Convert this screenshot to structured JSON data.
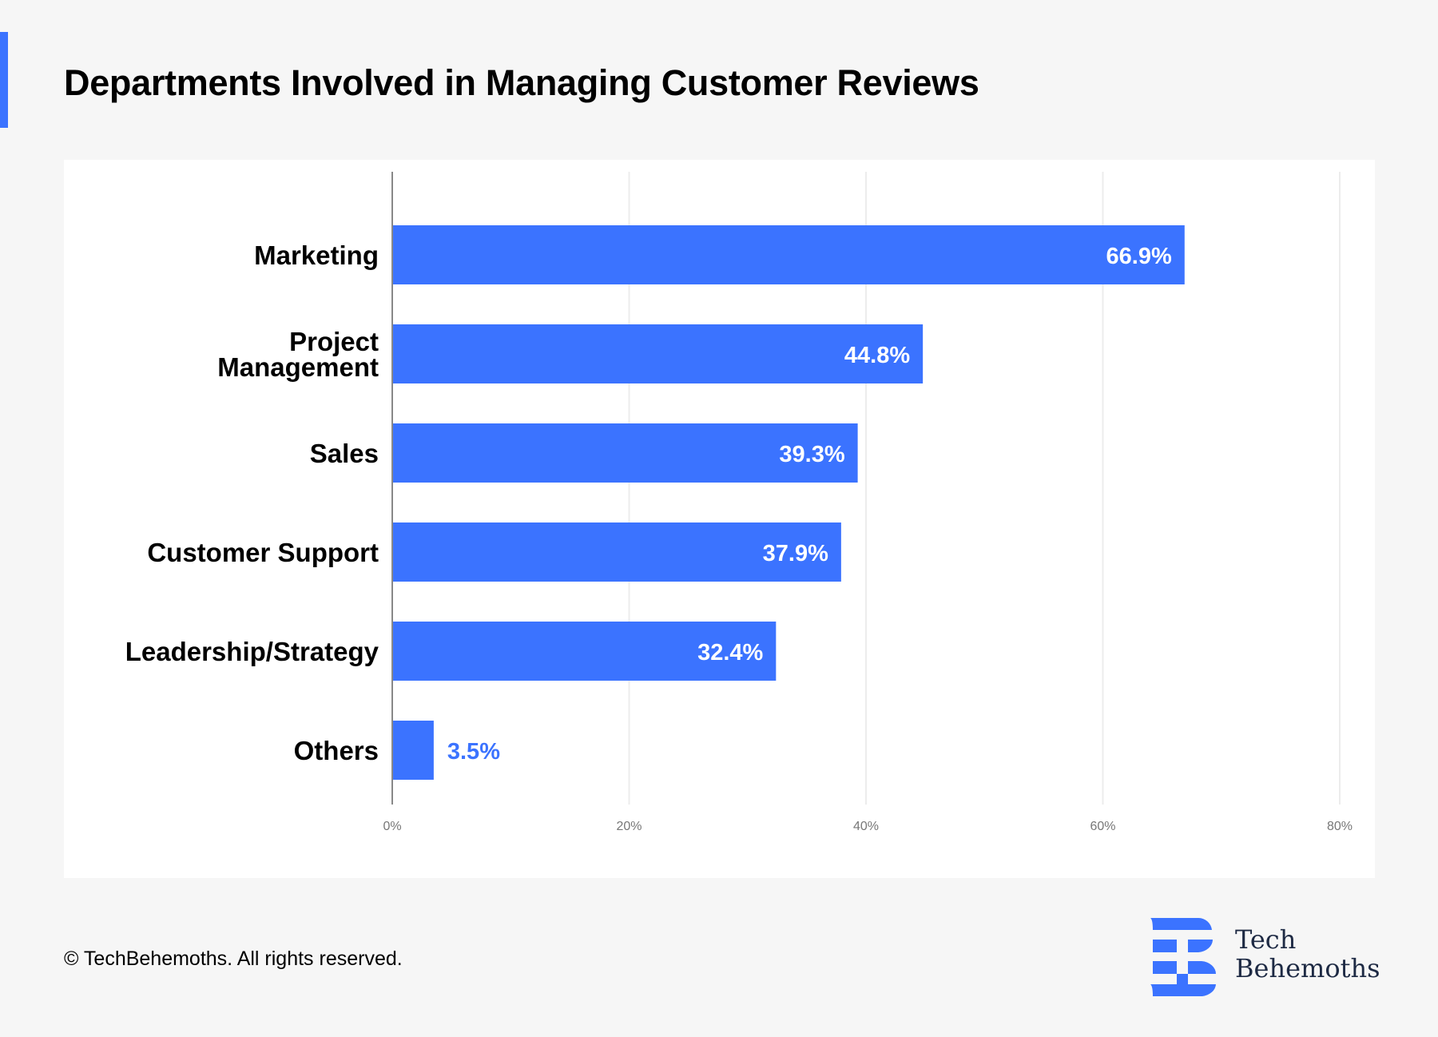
{
  "header": {
    "title": "Departments Involved in Managing Customer Reviews"
  },
  "footer": {
    "copyright": "© TechBehemoths. All rights reserved."
  },
  "brand": {
    "line1": "Tech",
    "line2": "Behemoths",
    "name": "TechBehemoths",
    "color": "#3b73ff",
    "text_color": "#1e2a44"
  },
  "chart_data": {
    "type": "bar",
    "orientation": "horizontal",
    "title": "Departments Involved in Managing Customer Reviews",
    "xlabel": "",
    "ylabel": "",
    "categories": [
      [
        "Marketing"
      ],
      [
        "Project",
        "Management"
      ],
      [
        "Sales"
      ],
      [
        "Customer Support"
      ],
      [
        "Leadership/Strategy"
      ],
      [
        "Others"
      ]
    ],
    "values": [
      66.9,
      44.8,
      39.3,
      37.9,
      32.4,
      3.5
    ],
    "value_labels": [
      "66.9%",
      "44.8%",
      "39.3%",
      "37.9%",
      "32.4%",
      "3.5%"
    ],
    "xlim": [
      0,
      80
    ],
    "xticks": [
      0,
      20,
      40,
      60,
      80
    ],
    "xtick_labels": [
      "0%",
      "20%",
      "40%",
      "60%",
      "80%"
    ],
    "grid": true,
    "legend": "none",
    "bar_color": "#3b73ff"
  }
}
